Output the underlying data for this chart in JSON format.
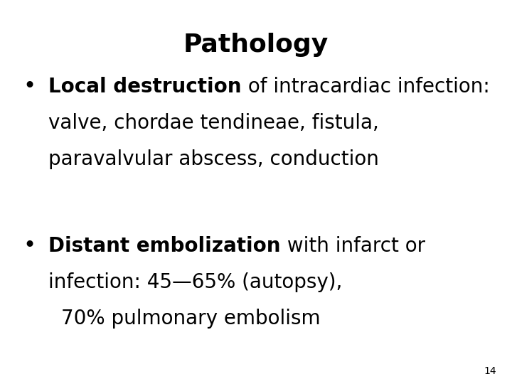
{
  "title": "Pathology",
  "title_fontsize": 26,
  "title_fontweight": "bold",
  "background_color": "#ffffff",
  "text_color": "#000000",
  "slide_number": "14",
  "bullet1_bold": "Local destruction",
  "bullet1_rest_line1": " of intracardiac infection:",
  "bullet1_line2": "valve, chordae tendineae, fistula,",
  "bullet1_line3": "paravalvular abscess, conduction",
  "bullet2_bold": "Distant embolization",
  "bullet2_rest_line1": " with infarct or",
  "bullet2_line2": "infection: 45—65% (autopsy),",
  "bullet2_line3": "  70% pulmonary embolism",
  "body_fontsize": 20,
  "font_family": "DejaVu Sans"
}
